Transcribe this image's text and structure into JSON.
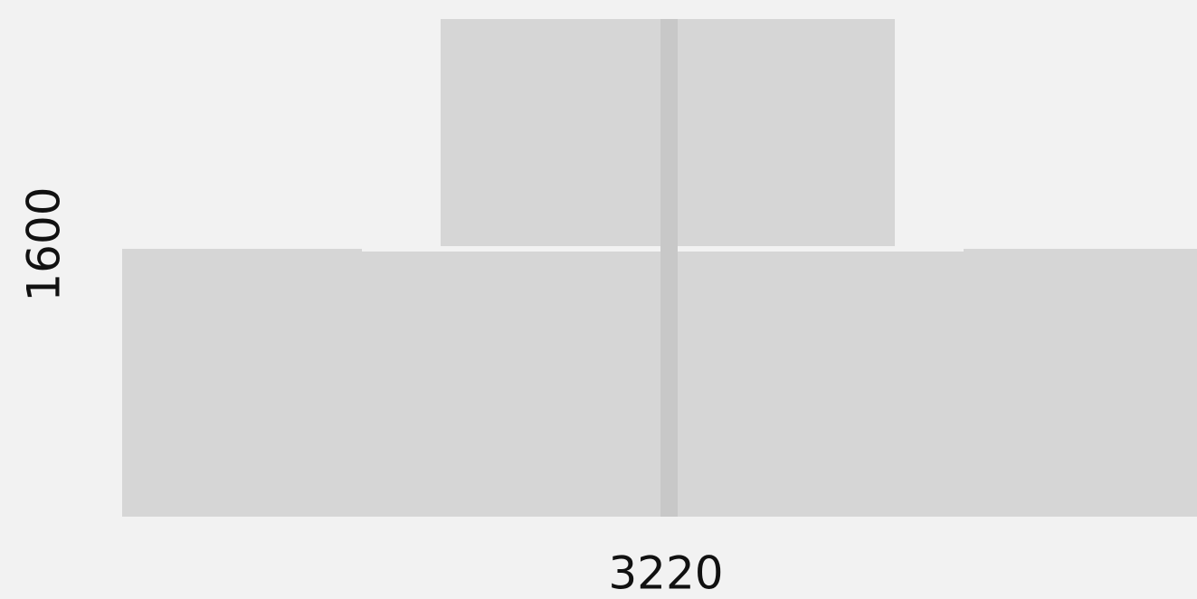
{
  "dimensions": {
    "height_label": "1600",
    "width_label": "3220"
  }
}
